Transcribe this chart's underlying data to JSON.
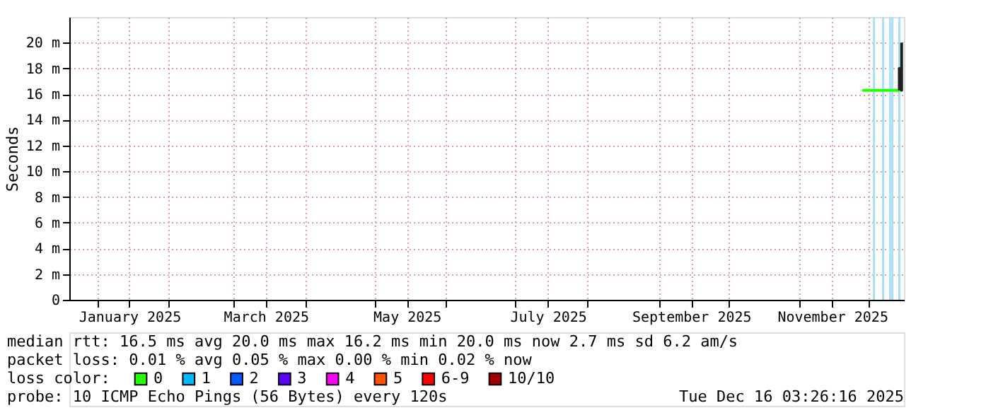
{
  "chart_data": {
    "type": "line",
    "ylabel": "Seconds",
    "xlim": [
      "2024-12-20",
      "2025-12-16"
    ],
    "xticks": [
      {
        "value": "2025-01-01",
        "label": null
      },
      {
        "value": "2025-01-15",
        "label": "January 2025"
      },
      {
        "value": "2025-02-01",
        "label": null
      },
      {
        "value": "2025-03-01",
        "label": null
      },
      {
        "value": "2025-03-15",
        "label": "March 2025"
      },
      {
        "value": "2025-04-01",
        "label": null
      },
      {
        "value": "2025-05-01",
        "label": null
      },
      {
        "value": "2025-05-15",
        "label": "May 2025"
      },
      {
        "value": "2025-06-01",
        "label": null
      },
      {
        "value": "2025-07-01",
        "label": null
      },
      {
        "value": "2025-07-15",
        "label": "July 2025"
      },
      {
        "value": "2025-08-01",
        "label": null
      },
      {
        "value": "2025-09-01",
        "label": null
      },
      {
        "value": "2025-09-15",
        "label": "September 2025"
      },
      {
        "value": "2025-10-01",
        "label": null
      },
      {
        "value": "2025-11-01",
        "label": null
      },
      {
        "value": "2025-11-15",
        "label": "November 2025"
      },
      {
        "value": "2025-12-01",
        "label": null
      }
    ],
    "ylim": [
      0,
      22
    ],
    "yticks": [
      0,
      {
        "value": 2,
        "label": "2 m"
      },
      {
        "value": 4,
        "label": "4 m"
      },
      {
        "value": 6,
        "label": "6 m"
      },
      {
        "value": 8,
        "label": "8 m"
      },
      {
        "value": 10,
        "label": "10 m"
      },
      {
        "value": 12,
        "label": "12 m"
      },
      {
        "value": 14,
        "label": "14 m"
      },
      {
        "value": 16,
        "label": "16 m"
      },
      {
        "value": 18,
        "label": "18 m"
      },
      {
        "value": 20,
        "label": "20 m"
      }
    ],
    "grid": true,
    "legend": "bottom",
    "legend_title": "loss color:",
    "series": [
      {
        "name": "0",
        "color": "#26ff00",
        "x": [
          "2025-11-28",
          "2025-12-05",
          "2025-12-10",
          "2025-12-15"
        ],
        "values": [
          16.3,
          16.3,
          16.3,
          16.3
        ]
      },
      {
        "color": "#202020",
        "x": [
          "2025-12-14",
          "2025-12-14",
          "2025-12-15",
          "2025-12-15"
        ],
        "values": [
          16.3,
          18,
          16.3,
          20
        ]
      },
      {
        "name": "1",
        "color": "#00b8ff"
      },
      {
        "name": "2",
        "color": "#0059ff"
      },
      {
        "name": "3",
        "color": "#5e00ff"
      },
      {
        "name": "4",
        "color": "#ff00ff"
      },
      {
        "name": "5",
        "color": "#ff5500"
      },
      {
        "name": "6-9",
        "color": "#ff0000"
      },
      {
        "name": "10/10",
        "color": "#a10000"
      }
    ],
    "ref_lines": [
      {
        "axis": "x",
        "value": "2025-12-03",
        "color": "#a8e0f8"
      },
      {
        "axis": "x",
        "value": "2025-12-07",
        "color": "#a8e0f8"
      },
      {
        "axis": "x",
        "value": "2025-12-10",
        "color": "#a8e0f8"
      },
      {
        "axis": "x",
        "value": "2025-12-11",
        "color": "#a8e0f8"
      },
      {
        "axis": "x",
        "value": "2025-12-14",
        "color": "#a8e0f8"
      }
    ],
    "annotations": [
      "median rtt:  16.5 ms avg  20.0 ms max  16.2 ms min  20.0 ms now  2.7 ms sd  6.2   am/s",
      "packet loss: 0.01 % avg  0.05 % max  0.00 % min  0.02 % now",
      "probe:       10 ICMP Echo Pings (56 Bytes) every 120s",
      "Tue Dec 16 03:26:16 2025"
    ]
  }
}
